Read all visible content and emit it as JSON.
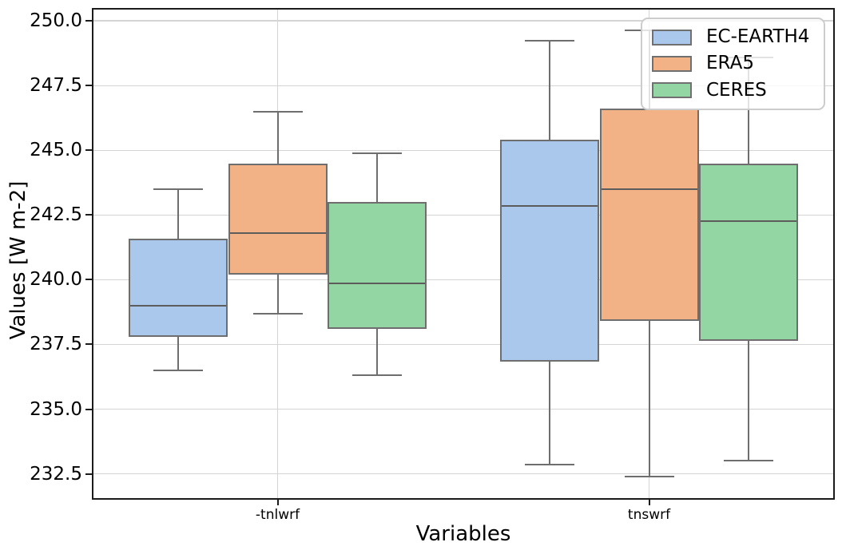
{
  "chart_data": {
    "type": "box",
    "title": "",
    "xlabel": "Variables",
    "ylabel": "Values [W m-2]",
    "categories": [
      "-tnlwrf",
      "tnswrf"
    ],
    "ylim": [
      231.5,
      250.5
    ],
    "yticks": [
      232.5,
      235.0,
      237.5,
      240.0,
      242.5,
      245.0,
      247.5,
      250.0
    ],
    "grid": {
      "horizontal": true,
      "vertical": true
    },
    "legend": {
      "position": "upper-right",
      "entries": [
        "EC-EARTH4",
        "ERA5",
        "CERES"
      ]
    },
    "series": [
      {
        "name": "EC-EARTH4",
        "color": "#a9c8eb",
        "boxes": [
          {
            "category": "-tnlwrf",
            "whisker_low": 236.5,
            "q1": 237.8,
            "median": 239.0,
            "q3": 241.6,
            "whisker_high": 243.5
          },
          {
            "category": "tnswrf",
            "whisker_low": 232.85,
            "q1": 236.85,
            "median": 242.85,
            "q3": 245.4,
            "whisker_high": 249.25
          }
        ]
      },
      {
        "name": "ERA5",
        "color": "#f2b286",
        "boxes": [
          {
            "category": "-tnlwrf",
            "whisker_low": 238.7,
            "q1": 240.2,
            "median": 241.8,
            "q3": 244.5,
            "whisker_high": 246.5
          },
          {
            "category": "tnswrf",
            "whisker_low": 232.4,
            "q1": 238.4,
            "median": 243.5,
            "q3": 246.6,
            "whisker_high": 249.65
          }
        ]
      },
      {
        "name": "CERES",
        "color": "#94d6a3",
        "boxes": [
          {
            "category": "-tnlwrf",
            "whisker_low": 236.3,
            "q1": 238.1,
            "median": 239.85,
            "q3": 243.0,
            "whisker_high": 244.9
          },
          {
            "category": "tnswrf",
            "whisker_low": 233.0,
            "q1": 237.65,
            "median": 242.25,
            "q3": 244.5,
            "whisker_high": 248.6
          }
        ]
      }
    ],
    "style": {
      "box_edge": "#6e6e6e",
      "median_line": "#5c5c5c",
      "whisker": "#6e6e6e",
      "gridline": "#d4d4d4",
      "spine": "#1b1b1b"
    }
  }
}
